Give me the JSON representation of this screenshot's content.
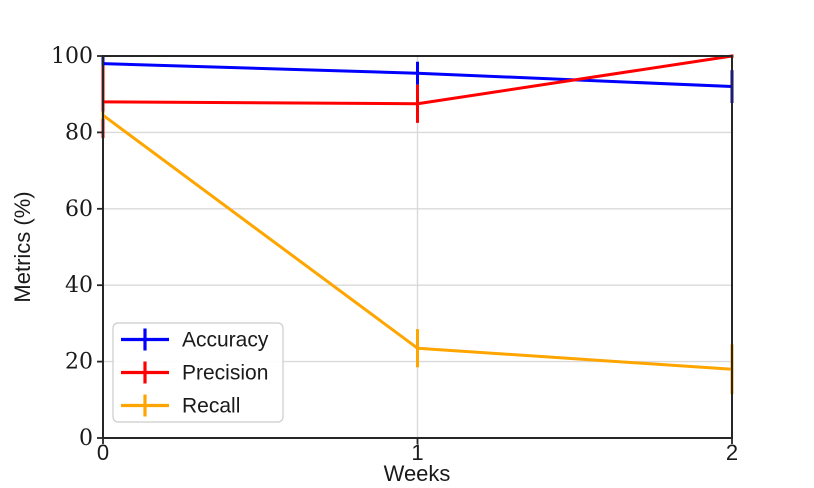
{
  "chart_data": {
    "type": "line",
    "title": "",
    "xlabel": "Weeks",
    "ylabel": "Metrics (%)",
    "x": [
      0,
      1,
      2
    ],
    "xlim": [
      0,
      2
    ],
    "ylim": [
      0,
      100
    ],
    "xticks": [
      0,
      1,
      2
    ],
    "yticks": [
      0,
      20,
      40,
      60,
      80,
      100
    ],
    "grid": true,
    "legend_position": "lower-left",
    "series": [
      {
        "name": "Accuracy",
        "color": "#0000ff",
        "values": [
          98,
          95.5,
          92
        ],
        "yerr": [
          2,
          3,
          4.3
        ]
      },
      {
        "name": "Precision",
        "color": "#ff0000",
        "values": [
          88,
          87.5,
          100
        ],
        "yerr": [
          9.5,
          5,
          0.5
        ]
      },
      {
        "name": "Recall",
        "color": "#ffa500",
        "values": [
          84.5,
          23.5,
          18
        ],
        "yerr": [
          1,
          5,
          6.5
        ]
      }
    ]
  },
  "style_colors": {
    "background": "#ffffff",
    "grid": "#d9d9d9",
    "spine": "#262626",
    "tick_text": "#1a1a1a",
    "legend_border": "#cccccc",
    "legend_fill": "#ffffff"
  }
}
